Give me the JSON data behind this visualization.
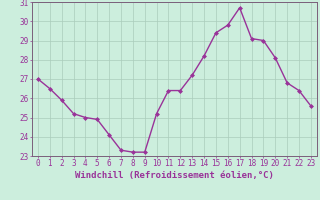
{
  "x": [
    0,
    1,
    2,
    3,
    4,
    5,
    6,
    7,
    8,
    9,
    10,
    11,
    12,
    13,
    14,
    15,
    16,
    17,
    18,
    19,
    20,
    21,
    22,
    23
  ],
  "y": [
    27.0,
    26.5,
    25.9,
    25.2,
    25.0,
    24.9,
    24.1,
    23.3,
    23.2,
    23.2,
    25.2,
    26.4,
    26.4,
    27.2,
    28.2,
    29.4,
    29.8,
    30.7,
    29.1,
    29.0,
    28.1,
    26.8,
    26.4,
    25.6
  ],
  "line_color": "#993399",
  "marker": "D",
  "marker_size": 2.0,
  "bg_color": "#cceedd",
  "grid_color": "#aaccbb",
  "xlabel": "Windchill (Refroidissement éolien,°C)",
  "xlabel_color": "#993399",
  "tick_color": "#993399",
  "spine_color": "#7a5f7a",
  "ylim": [
    23,
    31
  ],
  "yticks": [
    23,
    24,
    25,
    26,
    27,
    28,
    29,
    30,
    31
  ],
  "xticks": [
    0,
    1,
    2,
    3,
    4,
    5,
    6,
    7,
    8,
    9,
    10,
    11,
    12,
    13,
    14,
    15,
    16,
    17,
    18,
    19,
    20,
    21,
    22,
    23
  ],
  "line_width": 1.0,
  "tick_fontsize": 5.5,
  "xlabel_fontsize": 6.5
}
